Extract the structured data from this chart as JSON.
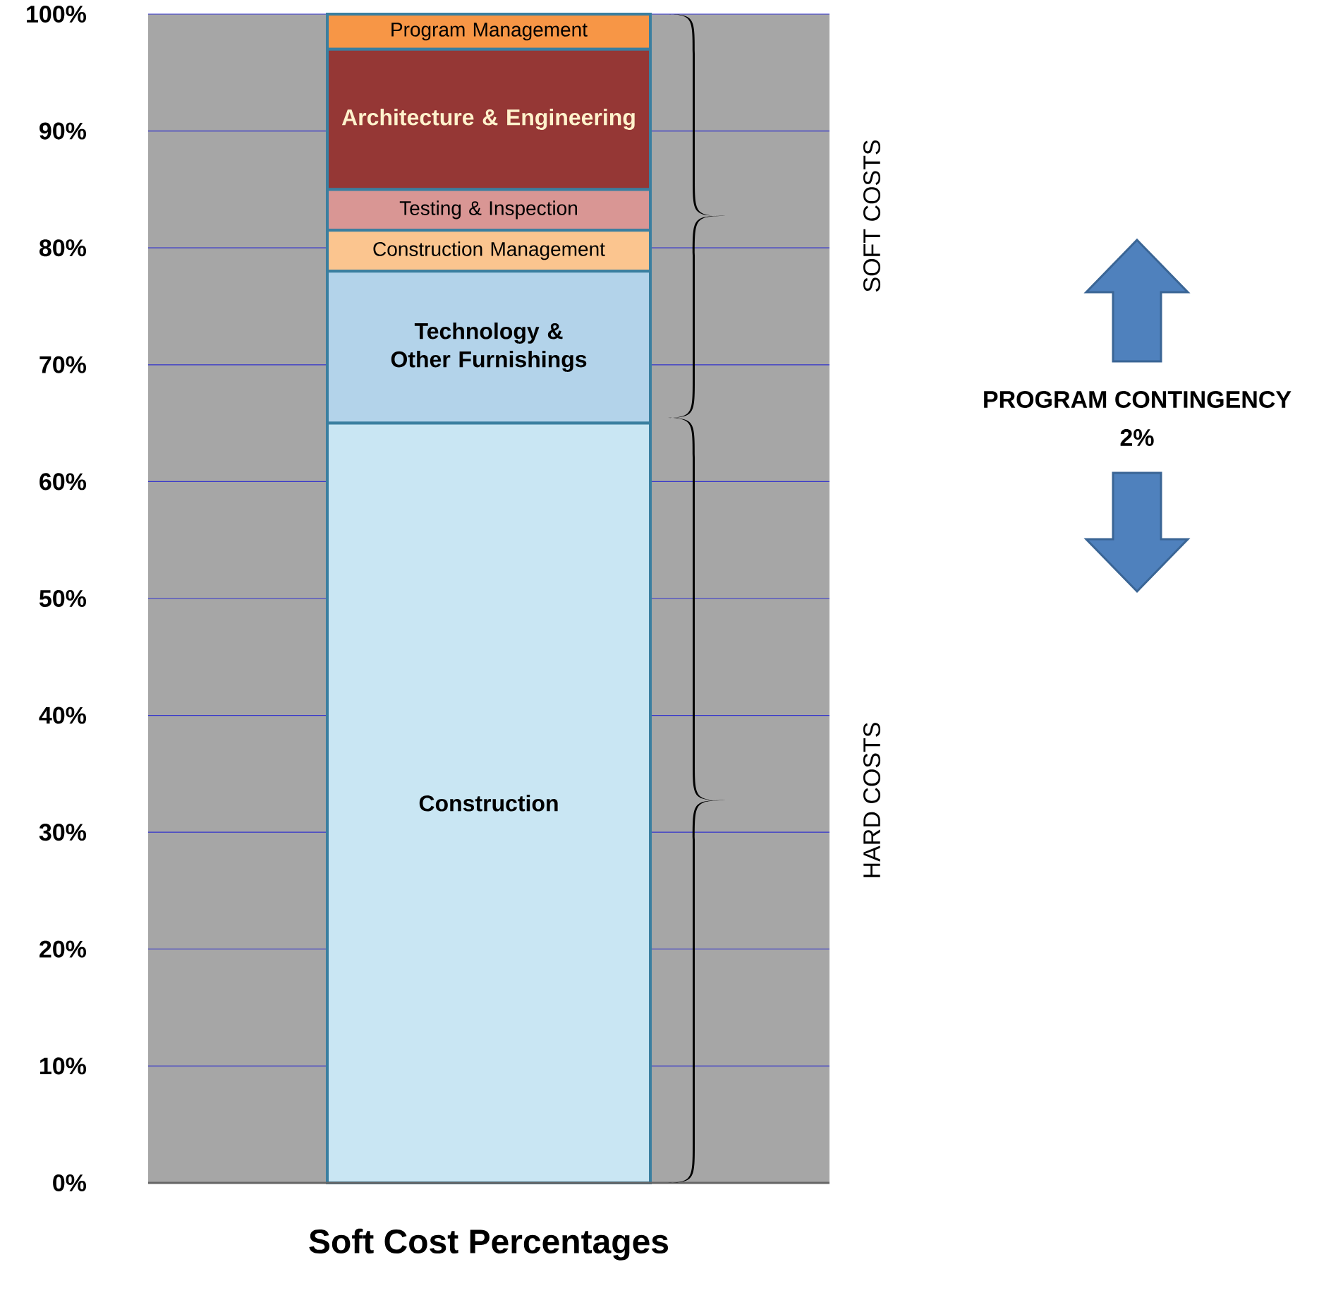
{
  "chart_data": {
    "type": "bar",
    "stacked": true,
    "xlabel": "Soft Cost Percentages",
    "categories": [
      null
    ],
    "series": [
      {
        "name": "Construction",
        "color": "#c9e6f3",
        "values": [
          65
        ]
      },
      {
        "name": "Technology & Other Furnishings",
        "color": "#b3d3ea",
        "values": [
          13
        ]
      },
      {
        "name": "Construction Management",
        "color": "#fbc58f",
        "values": [
          3.5
        ]
      },
      {
        "name": "Testing & Inspection",
        "color": "#d99694",
        "values": [
          3.5
        ]
      },
      {
        "name": "Architecture & Engineering",
        "color": "#953735",
        "values": [
          12
        ]
      },
      {
        "name": "Program Management",
        "color": "#f79646",
        "values": [
          3
        ]
      }
    ],
    "ylim": [
      0,
      100
    ],
    "yticks": [
      {
        "value": 0,
        "label": "0%"
      },
      {
        "value": 10,
        "label": "10%"
      },
      {
        "value": 20,
        "label": "20%"
      },
      {
        "value": 30,
        "label": "30%"
      },
      {
        "value": 40,
        "label": "40%"
      },
      {
        "value": 50,
        "label": "50%"
      },
      {
        "value": 60,
        "label": "60%"
      },
      {
        "value": 70,
        "label": "70%"
      },
      {
        "value": 80,
        "label": "80%"
      },
      {
        "value": 90,
        "label": "90%"
      },
      {
        "value": 100,
        "label": "100%"
      }
    ],
    "grid": "y",
    "annotations": [
      "SOFT COSTS",
      "HARD COSTS",
      "PROGRAM CONTINGENCY",
      "2%"
    ]
  }
}
